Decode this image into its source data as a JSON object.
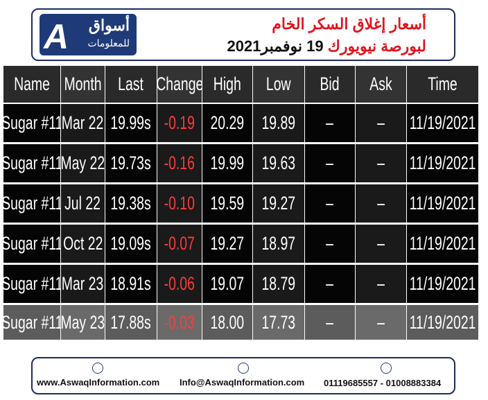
{
  "header": {
    "logo_title": "أسواق",
    "logo_subtitle": "للمعلومات",
    "title": "أسعار إغلاق السكر الخام",
    "subtitle_red": "لبورصة نيويورك",
    "subtitle_black": "19 نوفمبر2021"
  },
  "table": {
    "columns": [
      "Name",
      "Month",
      "Last",
      "Change",
      "High",
      "Low",
      "Bid",
      "Ask",
      "Time"
    ],
    "rows": [
      [
        "Sugar #11",
        "Mar 22",
        "19.99s",
        "-0.19",
        "20.29",
        "19.89",
        "–",
        "–",
        "11/19/2021"
      ],
      [
        "Sugar #11",
        "May 22",
        "19.73s",
        "-0.16",
        "19.99",
        "19.63",
        "–",
        "–",
        "11/19/2021"
      ],
      [
        "Sugar #11",
        "Jul 22",
        "19.38s",
        "-0.10",
        "19.59",
        "19.27",
        "–",
        "–",
        "11/19/2021"
      ],
      [
        "Sugar #11",
        "Oct 22",
        "19.09s",
        "-0.07",
        "19.27",
        "18.97",
        "–",
        "–",
        "11/19/2021"
      ],
      [
        "Sugar #11",
        "Mar 23",
        "18.91s",
        "-0.06",
        "19.07",
        "18.79",
        "–",
        "–",
        "11/19/2021"
      ],
      [
        "Sugar #11",
        "May 23",
        "17.88s",
        "-0.03",
        "18.00",
        "17.73",
        "–",
        "–",
        "11/19/2021"
      ]
    ]
  },
  "footer": {
    "website": "www.AswaqInformation.com",
    "email": "Info@AswaqInformation.com",
    "phones": "01119685557 - 01008883384"
  }
}
